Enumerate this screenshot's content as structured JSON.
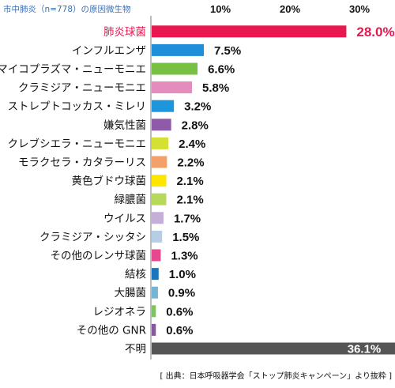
{
  "chart_data": {
    "type": "bar",
    "orientation": "horizontal",
    "caption": "市中肺炎（n=778）の原因微生物",
    "source": "[ 出典：日本呼吸器学会「ストップ肺炎キャンペーン」より抜粋 ]",
    "xlim": [
      0,
      35
    ],
    "x_ticks": [
      {
        "value": 10,
        "label": "10%"
      },
      {
        "value": 20,
        "label": "20%"
      },
      {
        "value": 30,
        "label": "30%"
      }
    ],
    "grid": false,
    "categories": [
      "肺炎球菌",
      "インフルエンザ",
      "マイコプラズマ・ニューモニエ",
      "クラミジア・ニューモニエ",
      "ストレプトコッカス・ミレリ",
      "嫌気性菌",
      "クレブシエラ・ニューモニエ",
      "モラクセラ・カタラーリス",
      "黄色ブドウ球菌",
      "緑膿菌",
      "ウイルス",
      "クラミジア・シッタシ",
      "その他のレンサ球菌",
      "結核",
      "大腸菌",
      "レジオネラ",
      "その他の GNR",
      "不明"
    ],
    "values": [
      28.0,
      7.5,
      6.6,
      5.8,
      3.2,
      2.8,
      2.4,
      2.2,
      2.1,
      2.1,
      1.7,
      1.5,
      1.3,
      1.0,
      0.9,
      0.6,
      0.6,
      36.1
    ],
    "value_labels": [
      "28.0%",
      "7.5%",
      "6.6%",
      "5.8%",
      "3.2%",
      "2.8%",
      "2.4%",
      "2.2%",
      "2.1%",
      "2.1%",
      "1.7%",
      "1.5%",
      "1.3%",
      "1.0%",
      "0.9%",
      "0.6%",
      "0.6%",
      "36.1%"
    ],
    "colors": [
      "#e8174f",
      "#1e8fd8",
      "#77c043",
      "#e48dbd",
      "#1e96dc",
      "#8f5ba8",
      "#d4e034",
      "#f4a06a",
      "#ffe600",
      "#b7d95a",
      "#c4afd8",
      "#b7cde6",
      "#e8478d",
      "#1877c0",
      "#72b6d6",
      "#7dc363",
      "#86599a",
      "#555555"
    ],
    "highlight_index": 0,
    "highlight_color": "#e8174f"
  }
}
